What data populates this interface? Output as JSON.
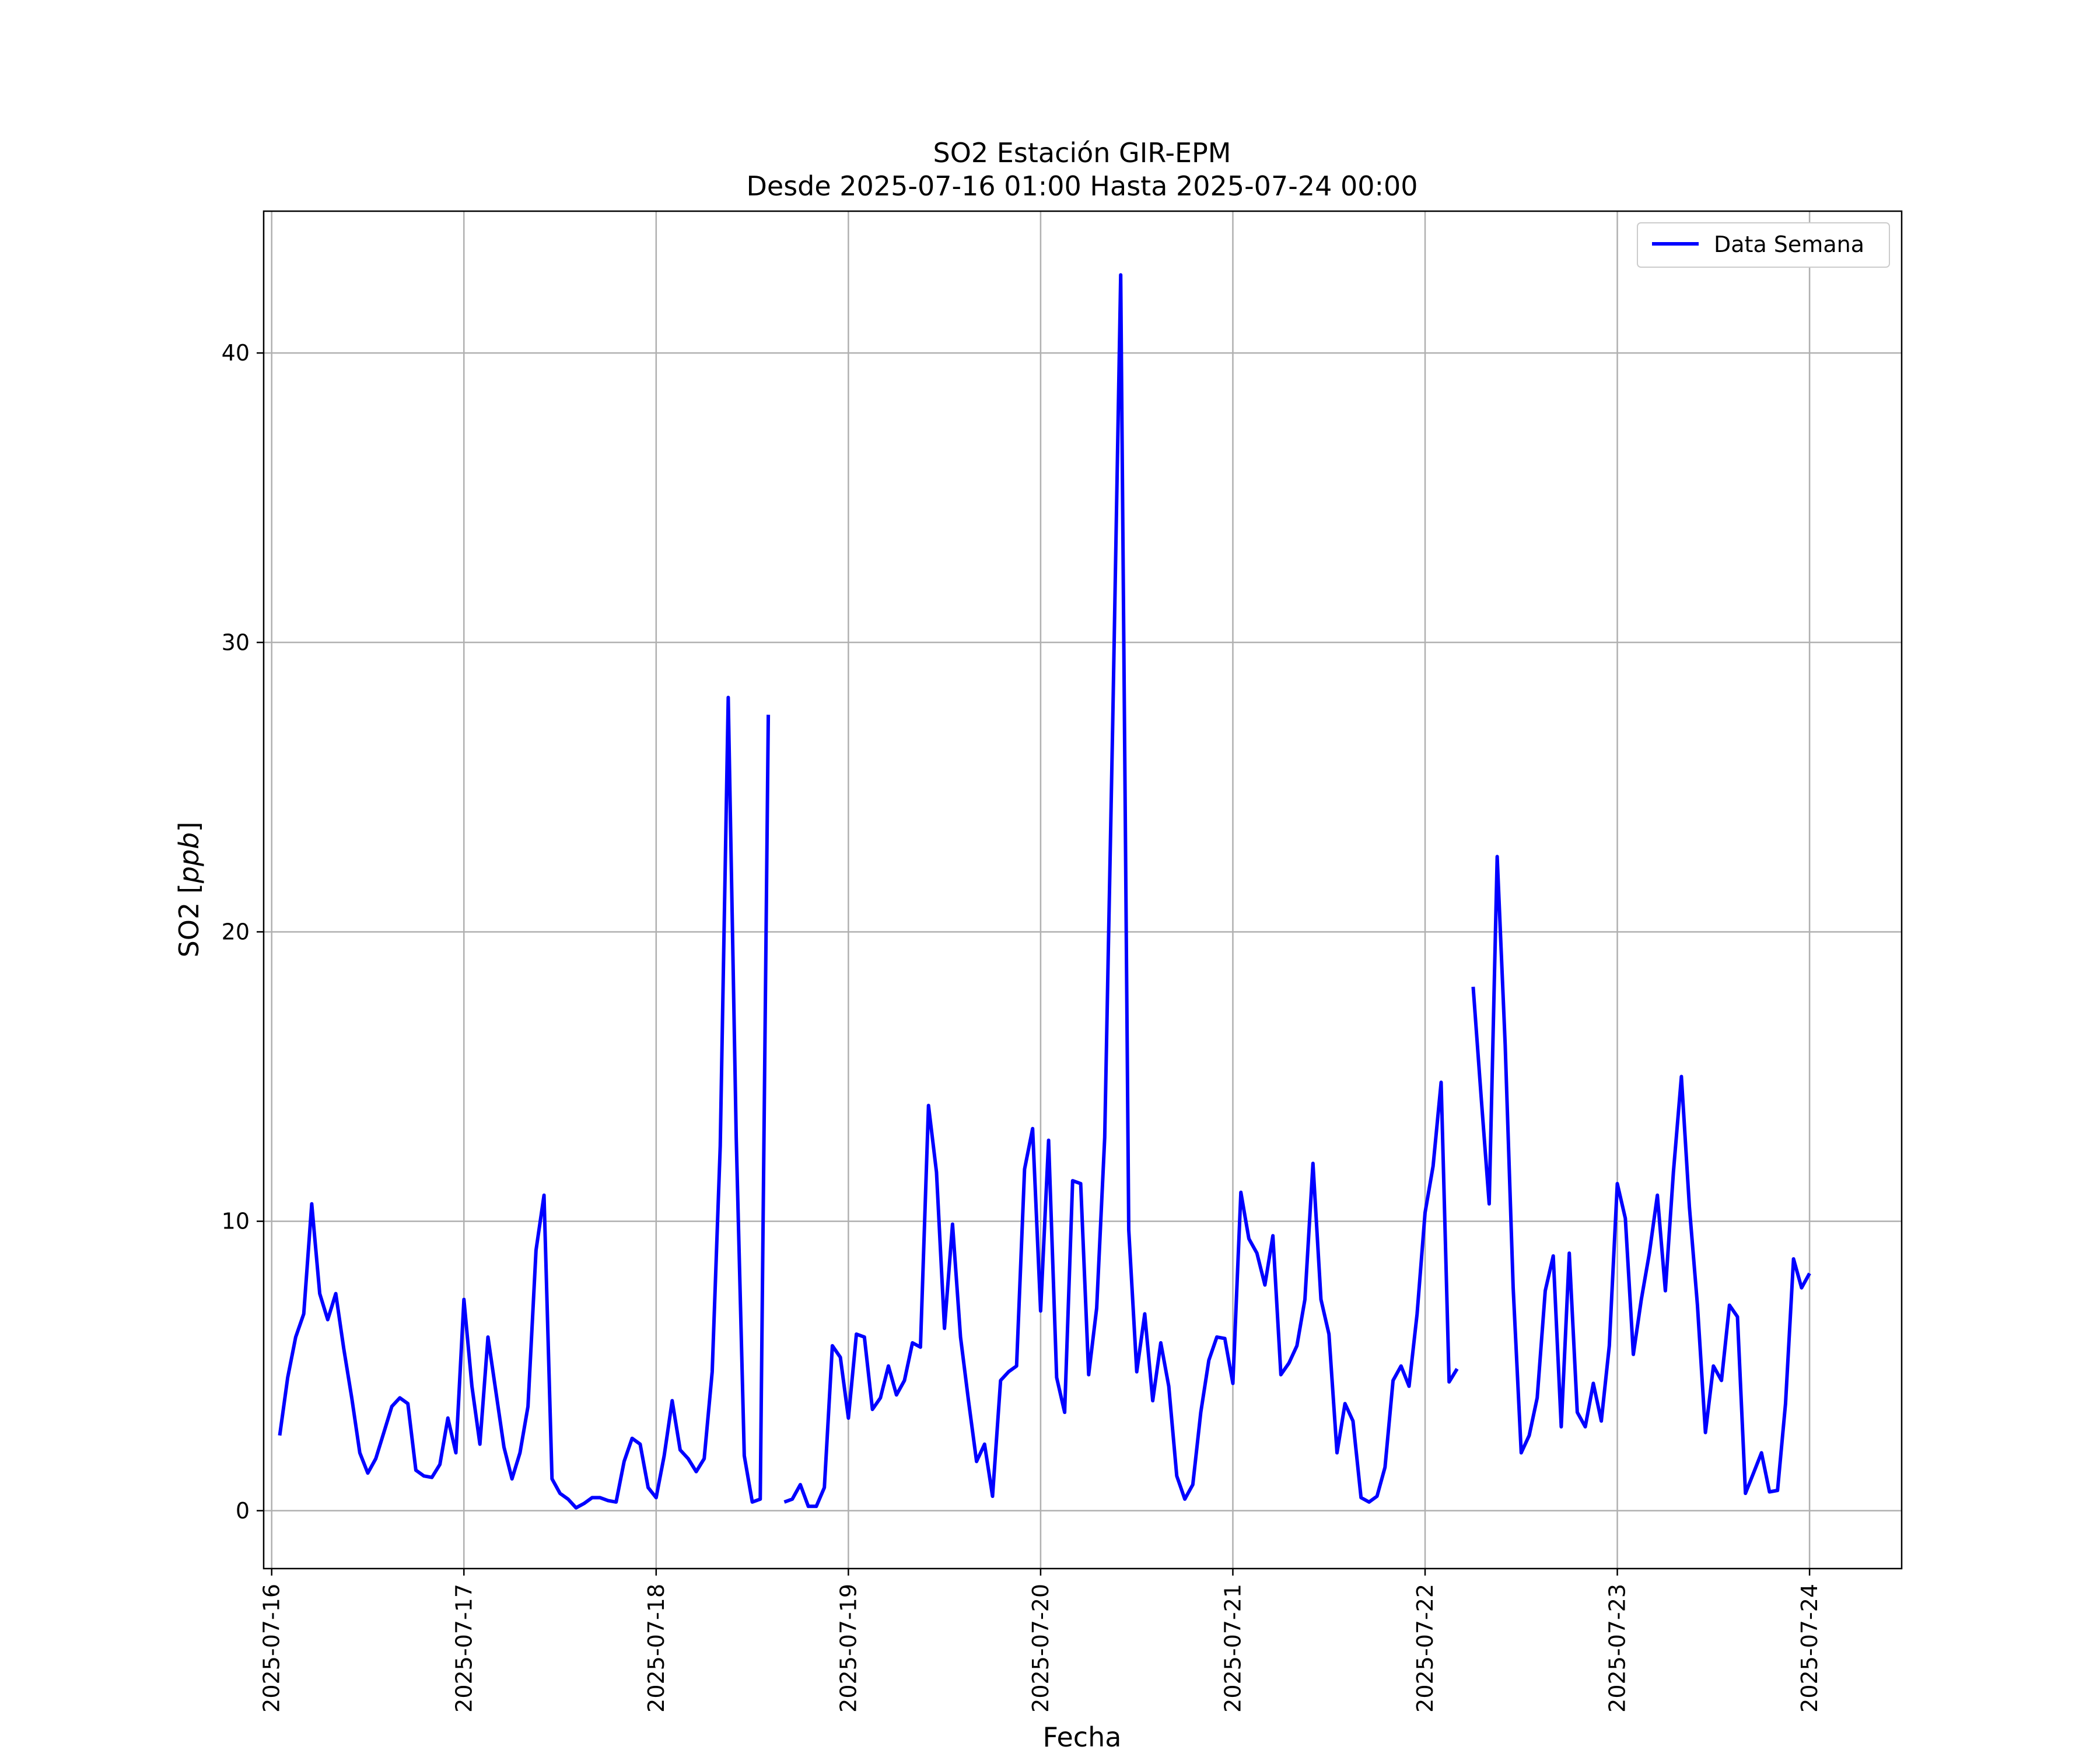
{
  "chart_data": {
    "type": "line",
    "title": "SO2 Estación GIR-EPM",
    "subtitle": "Desde 2025-07-16 01:00 Hasta 2025-07-24 00:00",
    "xlabel": "Fecha",
    "ylabel": "SO2 [ppb]",
    "ylabel_prefix": "SO2 [",
    "ylabel_unit": "ppb",
    "ylabel_suffix": "]",
    "xlim": [
      "2025-07-15 23:00",
      "2025-07-24 11:30"
    ],
    "ylim": [
      -2,
      44.9
    ],
    "x_ticks": [
      "2025-07-16",
      "2025-07-17",
      "2025-07-18",
      "2025-07-19",
      "2025-07-20",
      "2025-07-21",
      "2025-07-22",
      "2025-07-23",
      "2025-07-24"
    ],
    "y_ticks": [
      0,
      10,
      20,
      30,
      40
    ],
    "grid": true,
    "legend_position": "top-right",
    "series": [
      {
        "name": "Data Semana",
        "color": "#0000ff",
        "start": "2025-07-16 01:00",
        "interval_hours": 1,
        "values": [
          2.6,
          4.6,
          6.0,
          6.8,
          10.6,
          7.5,
          6.6,
          7.5,
          5.6,
          3.9,
          2.0,
          1.3,
          1.8,
          2.7,
          3.6,
          3.9,
          3.7,
          1.4,
          1.2,
          1.15,
          1.6,
          3.2,
          2.0,
          7.3,
          4.3,
          2.3,
          6.0,
          4.1,
          2.2,
          1.1,
          2.0,
          3.6,
          9.0,
          10.9,
          1.1,
          0.6,
          0.4,
          0.1,
          0.25,
          0.45,
          0.45,
          0.35,
          0.3,
          1.7,
          2.5,
          2.3,
          0.8,
          0.45,
          1.9,
          3.8,
          2.1,
          1.8,
          1.35,
          1.8,
          4.8,
          12.6,
          28.1,
          12.9,
          1.9,
          0.3,
          0.4,
          27.5,
          null,
          0.3,
          0.4,
          0.9,
          0.15,
          0.15,
          0.8,
          5.7,
          5.3,
          3.2,
          6.1,
          6.0,
          3.5,
          3.9,
          5.0,
          4.0,
          4.5,
          5.8,
          5.65,
          14.0,
          11.7,
          6.3,
          9.9,
          6.0,
          3.8,
          1.7,
          2.3,
          0.5,
          4.5,
          4.8,
          5.0,
          11.8,
          13.2,
          6.9,
          12.8,
          4.6,
          3.4,
          11.4,
          11.3,
          4.7,
          7.0,
          12.9,
          27.2,
          42.7,
          9.7,
          4.8,
          6.8,
          3.8,
          5.8,
          4.3,
          1.2,
          0.4,
          0.9,
          3.4,
          5.2,
          6.0,
          5.95,
          4.4,
          11.0,
          9.4,
          8.9,
          7.8,
          9.5,
          4.7,
          5.1,
          5.7,
          7.3,
          12.0,
          7.3,
          6.1,
          2.0,
          3.7,
          3.1,
          0.45,
          0.3,
          0.5,
          1.5,
          4.5,
          5.0,
          4.3,
          6.8,
          10.3,
          11.9,
          14.8,
          4.45,
          4.9,
          null,
          18.1,
          14.3,
          10.6,
          22.6,
          16.1,
          7.7,
          2.0,
          2.6,
          3.9,
          7.6,
          8.8,
          2.9,
          8.9,
          3.4,
          2.9,
          4.4,
          3.1,
          5.7,
          11.3,
          10.1,
          5.4,
          7.3,
          8.9,
          10.9,
          7.6,
          11.7,
          15.0,
          10.5,
          7.1,
          2.7,
          5.0,
          4.5,
          7.1,
          6.7,
          0.6,
          1.3,
          2.0,
          0.65,
          0.7,
          3.7,
          8.7,
          7.7,
          8.2
        ]
      }
    ]
  }
}
